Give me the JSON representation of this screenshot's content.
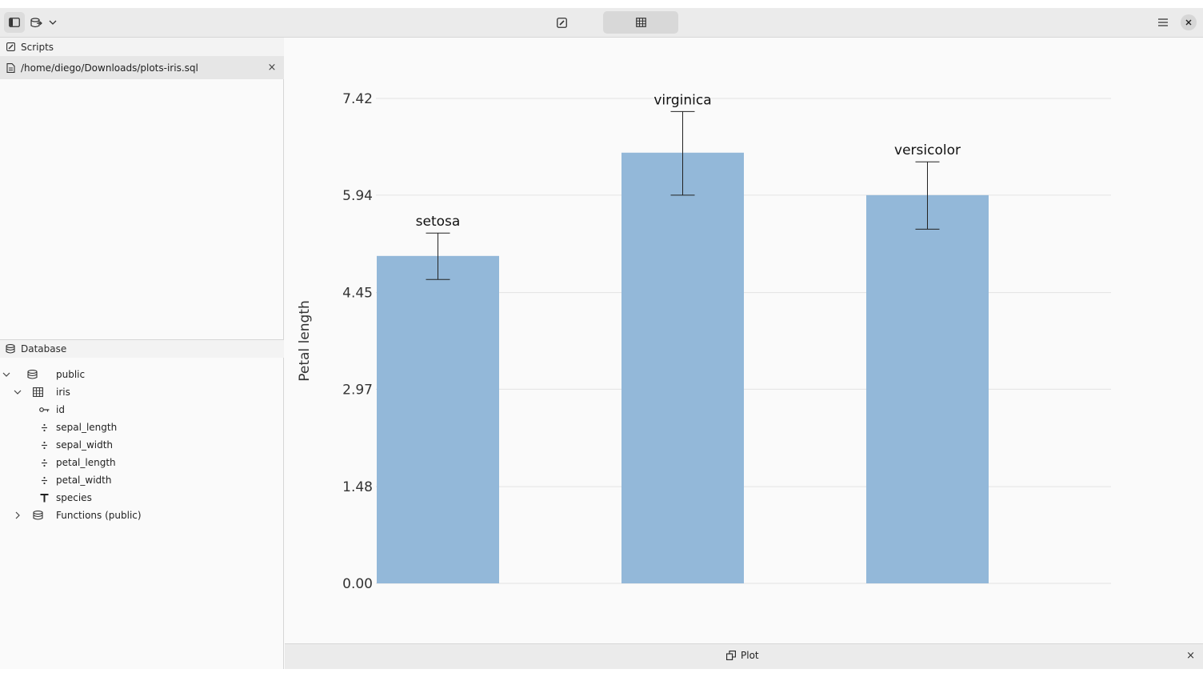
{
  "sidebar": {
    "scripts_header": "Scripts",
    "open_script": "/home/diego/Downloads/plots-iris.sql",
    "close_glyph": "×",
    "database_header": "Database",
    "tree": [
      {
        "label": "public",
        "icon": "database-icon",
        "expander": "expanded",
        "level": 0
      },
      {
        "label": "iris",
        "icon": "table-icon",
        "expander": "expanded",
        "level": 1
      },
      {
        "label": "id",
        "icon": "key-icon",
        "level": 2
      },
      {
        "label": "sepal_length",
        "icon": "numeric-icon",
        "level": 2
      },
      {
        "label": "sepal_width",
        "icon": "numeric-icon",
        "level": 2
      },
      {
        "label": "petal_length",
        "icon": "numeric-icon",
        "level": 2
      },
      {
        "label": "petal_width",
        "icon": "numeric-icon",
        "level": 2
      },
      {
        "label": "species",
        "icon": "text-type-icon",
        "level": 2
      },
      {
        "label": "Functions (public)",
        "icon": "database-icon",
        "expander": "collapsed",
        "level": 1
      }
    ]
  },
  "bottom_tab": {
    "label": "Plot",
    "close_glyph": "×"
  },
  "colors": {
    "bar": "#93b8d9",
    "grid": "#e3e3e3"
  },
  "chart_data": {
    "type": "bar",
    "ylabel": "Petal length",
    "ylim": [
      0,
      7.42
    ],
    "yticks": [
      "0.00",
      "1.48",
      "2.97",
      "4.45",
      "5.94",
      "7.42"
    ],
    "categories": [
      "setosa",
      "virginica",
      "versicolor"
    ],
    "values": [
      5.01,
      6.59,
      5.94
    ],
    "error_low": [
      4.65,
      5.94,
      5.42
    ],
    "error_high": [
      5.36,
      7.22,
      6.45
    ],
    "data_labels": [
      "setosa",
      "virginica",
      "versicolor"
    ],
    "grid": true,
    "legend": "none"
  }
}
